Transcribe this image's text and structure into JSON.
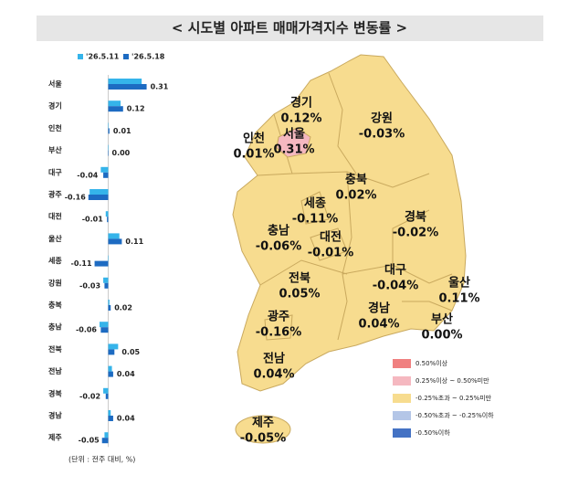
{
  "title": "< 시도별 아파트 매매가격지수 변동률 >",
  "chart_data": {
    "type": "bar",
    "orientation": "horizontal",
    "categories": [
      "서울",
      "경기",
      "인천",
      "부산",
      "대구",
      "광주",
      "대전",
      "울산",
      "세종",
      "강원",
      "충북",
      "충남",
      "전북",
      "전남",
      "경북",
      "경남",
      "제주"
    ],
    "series": [
      {
        "name": "'26.5.11",
        "color": "#35b4ea",
        "values": [
          0.27,
          0.1,
          0.0,
          0.0,
          -0.06,
          -0.15,
          -0.02,
          0.09,
          0.0,
          -0.04,
          0.01,
          -0.07,
          0.08,
          0.03,
          -0.04,
          0.02,
          -0.03
        ]
      },
      {
        "name": "'26.5.18",
        "color": "#1d6bc2",
        "values": [
          0.31,
          0.12,
          0.01,
          0.0,
          -0.04,
          -0.16,
          -0.01,
          0.11,
          -0.11,
          -0.03,
          0.02,
          -0.06,
          0.05,
          0.04,
          -0.02,
          0.04,
          -0.05
        ],
        "value_labels": [
          "0.31",
          "0.12",
          "0.01",
          "0.00",
          "-0.04",
          "-0.16",
          "-0.01",
          "0.11",
          "-0.11",
          "-0.03",
          "0.02",
          "-0.06",
          "0.05",
          "0.04",
          "-0.02",
          "0.04",
          "-0.05"
        ]
      }
    ],
    "xlim": [
      -0.21,
      0.35
    ],
    "note": "(단위 : 전주 대비, %)"
  },
  "map": {
    "regions": [
      {
        "name": "경기",
        "label": "0.12%"
      },
      {
        "name": "강원",
        "label": "-0.03%"
      },
      {
        "name": "인천",
        "label": "0.01%"
      },
      {
        "name": "서울",
        "label": "0.31%"
      },
      {
        "name": "충북",
        "label": "0.02%"
      },
      {
        "name": "세종",
        "label": "-0.11%"
      },
      {
        "name": "경북",
        "label": "-0.02%"
      },
      {
        "name": "충남",
        "label": "-0.06%"
      },
      {
        "name": "대전",
        "label": "-0.01%"
      },
      {
        "name": "대구",
        "label": "-0.04%"
      },
      {
        "name": "울산",
        "label": "0.11%"
      },
      {
        "name": "전북",
        "label": "0.05%"
      },
      {
        "name": "광주",
        "label": "-0.16%"
      },
      {
        "name": "경남",
        "label": "0.04%"
      },
      {
        "name": "부산",
        "label": "0.00%"
      },
      {
        "name": "전남",
        "label": "0.04%"
      },
      {
        "name": "제주",
        "label": "-0.05%"
      }
    ],
    "legend": [
      {
        "label": "0.50%이상",
        "color": "#f08080"
      },
      {
        "label": "0.25%이상 ~ 0.50%미만",
        "color": "#f5b8c0"
      },
      {
        "label": "-0.25%초과 ~ 0.25%미만",
        "color": "#f7dc8f"
      },
      {
        "label": "-0.50%초과 ~ -0.25%이하",
        "color": "#b4c6e7"
      },
      {
        "label": "-0.50%이하",
        "color": "#4472c4"
      }
    ]
  }
}
